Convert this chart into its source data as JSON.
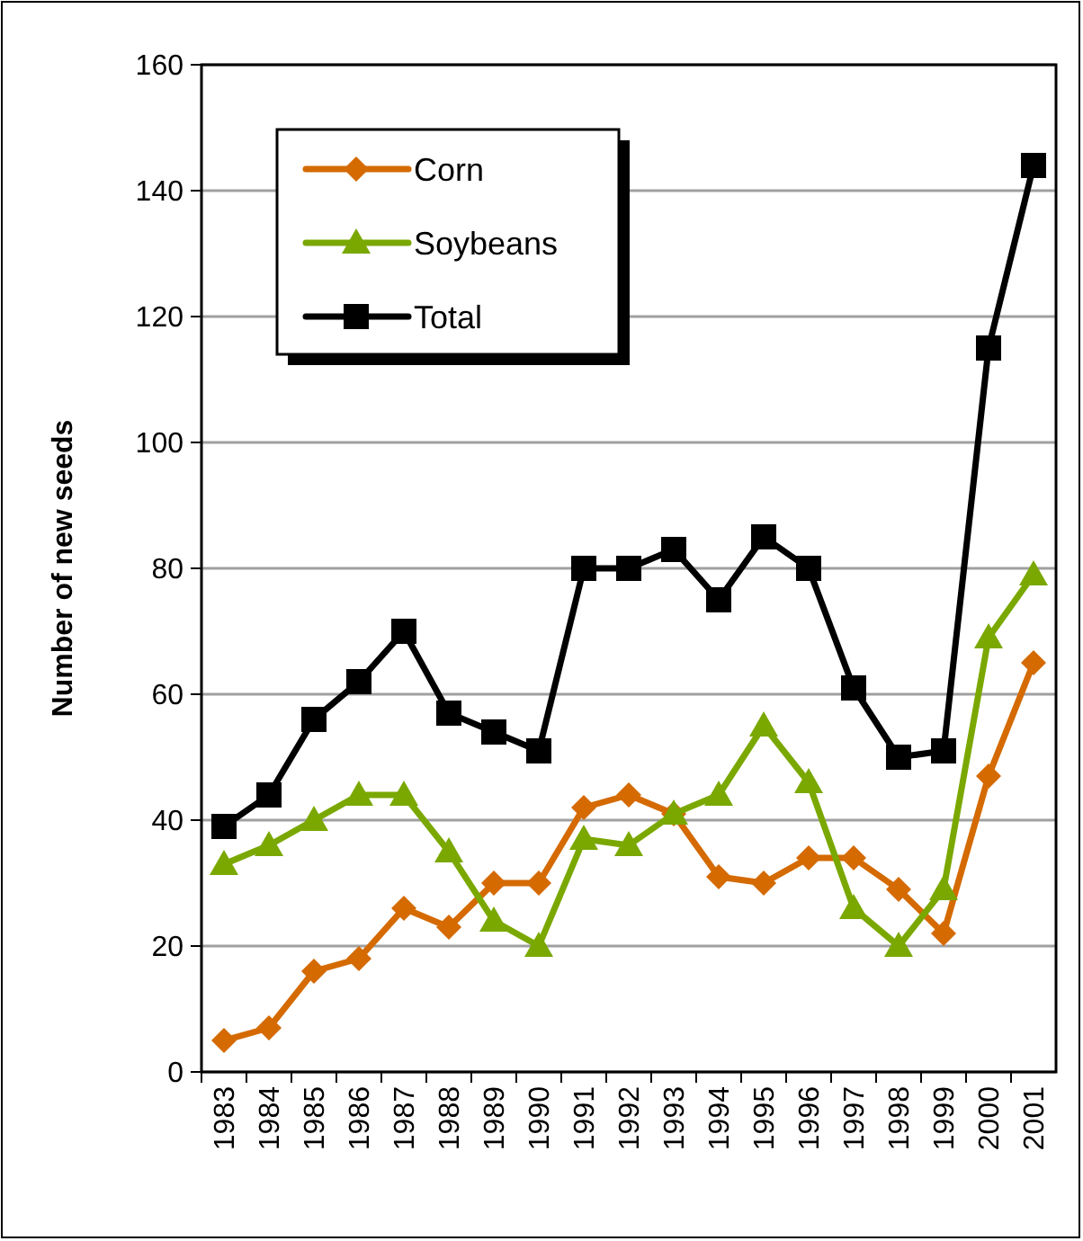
{
  "chart_data": {
    "type": "line",
    "ylabel": "Number of new seeds",
    "categories": [
      "1983",
      "1984",
      "1985",
      "1986",
      "1987",
      "1988",
      "1989",
      "1990",
      "1991",
      "1992",
      "1993",
      "1994",
      "1995",
      "1996",
      "1997",
      "1998",
      "1999",
      "2000",
      "2001"
    ],
    "series": [
      {
        "name": "Corn",
        "color": "#d46a00",
        "marker": "diamond",
        "values": [
          5,
          7,
          16,
          18,
          26,
          23,
          30,
          30,
          42,
          44,
          41,
          31,
          30,
          34,
          34,
          29,
          22,
          47,
          65
        ]
      },
      {
        "name": "Soybeans",
        "color": "#7aa800",
        "marker": "triangle",
        "values": [
          33,
          36,
          40,
          44,
          44,
          35,
          24,
          20,
          37,
          36,
          41,
          44,
          55,
          46,
          26,
          20,
          29,
          69,
          79
        ]
      },
      {
        "name": "Total",
        "color": "#000000",
        "marker": "square",
        "values": [
          39,
          44,
          56,
          62,
          70,
          57,
          54,
          51,
          80,
          80,
          83,
          75,
          85,
          80,
          61,
          50,
          51,
          115,
          144
        ]
      }
    ],
    "ylim": [
      0,
      160
    ],
    "yticks": [
      0,
      20,
      40,
      60,
      80,
      100,
      120,
      140,
      160
    ],
    "grid": "y",
    "legend": "top left"
  }
}
